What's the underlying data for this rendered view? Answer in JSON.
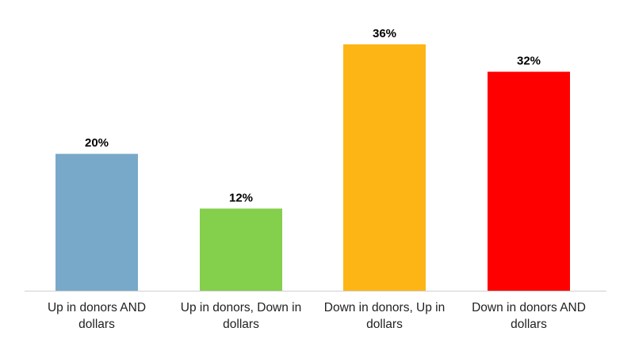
{
  "chart_data": {
    "type": "bar",
    "categories": [
      [
        "Up in donors AND",
        "dollars"
      ],
      [
        "Up in donors, Down in",
        "dollars"
      ],
      [
        "Down in donors, Up in",
        "dollars"
      ],
      [
        "Down in donors AND",
        "dollars"
      ]
    ],
    "values": [
      20,
      12,
      36,
      32
    ],
    "data_labels": [
      "20%",
      "12%",
      "36%",
      "32%"
    ],
    "colors": [
      "#79a9c9",
      "#84cf4b",
      "#fdb515",
      "#ff0000"
    ],
    "ylim": [
      0,
      36
    ],
    "grid": false,
    "legend": "none"
  }
}
